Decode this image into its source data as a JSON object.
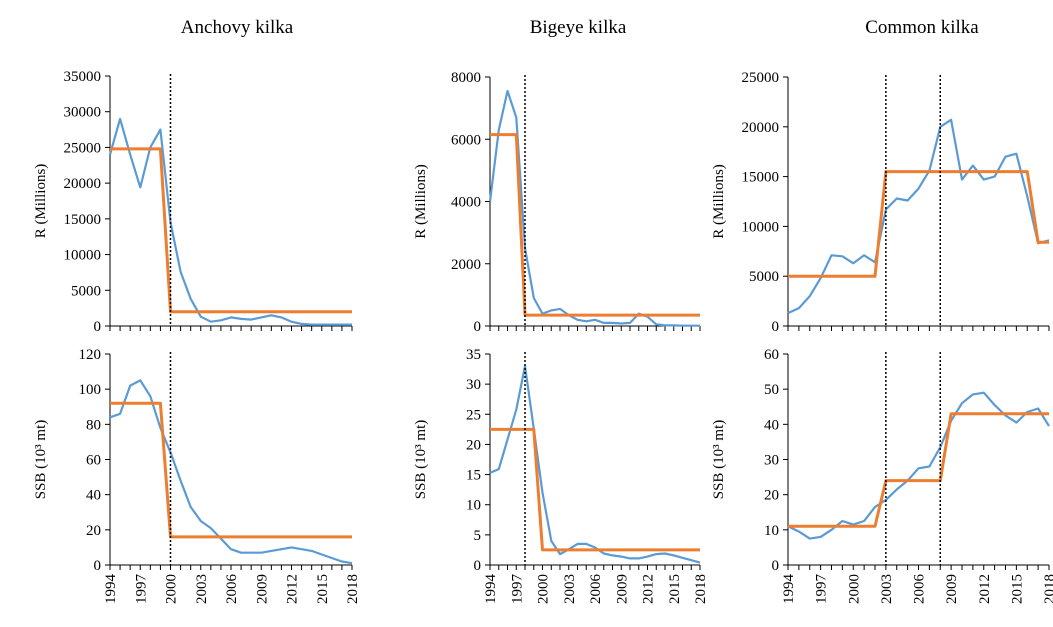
{
  "colors": {
    "observed": "#5b9bd5",
    "regime": "#ed7d31",
    "axis": "#000000",
    "breakpoint": "#000000"
  },
  "chart_data": [
    {
      "type": "line",
      "title": "Anchovy kilka",
      "ylabel": "R (Millions)",
      "ylim": [
        0,
        35000
      ],
      "yticks": [
        "35000",
        "30000",
        "25000",
        "20000",
        "15000",
        "10000",
        "5000",
        "0"
      ],
      "xticks": [
        "1994",
        "1997",
        "2000",
        "2003",
        "2006",
        "2009",
        "2012",
        "2015",
        "2018"
      ],
      "x": [
        1994,
        1995,
        1996,
        1997,
        1998,
        1999,
        2000,
        2001,
        2002,
        2003,
        2004,
        2005,
        2006,
        2007,
        2008,
        2009,
        2010,
        2011,
        2012,
        2013,
        2014,
        2015,
        2016,
        2017,
        2018
      ],
      "breakpoints": [
        2000
      ],
      "series": [
        {
          "values": [
            24000,
            29000,
            24000,
            19400,
            25000,
            27500,
            14500,
            7600,
            3800,
            1300,
            600,
            800,
            1200,
            1000,
            900,
            1200,
            1500,
            1200,
            600,
            300,
            200,
            200,
            200,
            200,
            200
          ]
        },
        {
          "regime": true,
          "values": [
            24800,
            24800,
            24800,
            24800,
            24800,
            24800,
            2000,
            2000,
            2000,
            2000,
            2000,
            2000,
            2000,
            2000,
            2000,
            2000,
            2000,
            2000,
            2000,
            2000,
            2000,
            2000,
            2000,
            2000,
            2000
          ]
        }
      ]
    },
    {
      "type": "line",
      "title": "Bigeye kilka",
      "ylabel": "R (Millions)",
      "ylim": [
        0,
        8000
      ],
      "yticks": [
        "8000",
        "6000",
        "4000",
        "2000",
        "0"
      ],
      "xticks": [
        "1994",
        "1997",
        "2000",
        "2003",
        "2006",
        "2009",
        "2012",
        "2015",
        "2018"
      ],
      "x": [
        1994,
        1995,
        1996,
        1997,
        1998,
        1999,
        2000,
        2001,
        2002,
        2003,
        2004,
        2005,
        2006,
        2007,
        2008,
        2009,
        2010,
        2011,
        2012,
        2013,
        2014,
        2015,
        2016,
        2017,
        2018
      ],
      "breakpoints": [
        1998
      ],
      "series": [
        {
          "values": [
            4000,
            6300,
            7550,
            6700,
            2500,
            900,
            400,
            500,
            550,
            350,
            200,
            150,
            200,
            100,
            100,
            80,
            100,
            400,
            300,
            50,
            20,
            20,
            10,
            10,
            10
          ]
        },
        {
          "regime": true,
          "values": [
            6150,
            6150,
            6150,
            6150,
            350,
            350,
            350,
            350,
            350,
            350,
            350,
            350,
            350,
            350,
            350,
            350,
            350,
            350,
            350,
            350,
            350,
            350,
            350,
            350,
            350
          ]
        }
      ]
    },
    {
      "type": "line",
      "title": "Common kilka",
      "ylabel": "R (Millions)",
      "ylim": [
        0,
        25000
      ],
      "yticks": [
        "25000",
        "20000",
        "15000",
        "10000",
        "5000",
        "0"
      ],
      "xticks": [
        "1994",
        "1997",
        "2000",
        "2003",
        "2006",
        "2009",
        "2012",
        "2015",
        "2018"
      ],
      "x": [
        1994,
        1995,
        1996,
        1997,
        1998,
        1999,
        2000,
        2001,
        2002,
        2003,
        2004,
        2005,
        2006,
        2007,
        2008,
        2009,
        2010,
        2011,
        2012,
        2013,
        2014,
        2015,
        2016,
        2017,
        2018
      ],
      "breakpoints": [
        2003,
        2008
      ],
      "series": [
        {
          "values": [
            1300,
            1800,
            3000,
            4800,
            7100,
            7000,
            6300,
            7100,
            6400,
            11700,
            12800,
            12600,
            13800,
            15600,
            20000,
            20700,
            14700,
            16100,
            14700,
            15000,
            17000,
            17300,
            13000,
            8300,
            8600
          ]
        },
        {
          "regime": true,
          "values": [
            5000,
            5000,
            5000,
            5000,
            5000,
            5000,
            5000,
            5000,
            5000,
            15500,
            15500,
            15500,
            15500,
            15500,
            15500,
            15500,
            15500,
            15500,
            15500,
            15500,
            15500,
            15500,
            15500,
            8400,
            8400
          ]
        }
      ]
    },
    {
      "type": "line",
      "title": "",
      "ylabel": "SSB (10³ mt)",
      "ylim": [
        0,
        120
      ],
      "yticks": [
        "120",
        "100",
        "80",
        "60",
        "40",
        "20",
        "0"
      ],
      "xticks": [
        "1994",
        "1997",
        "2000",
        "2003",
        "2006",
        "2009",
        "2012",
        "2015",
        "2018"
      ],
      "x": [
        1994,
        1995,
        1996,
        1997,
        1998,
        1999,
        2000,
        2001,
        2002,
        2003,
        2004,
        2005,
        2006,
        2007,
        2008,
        2009,
        2010,
        2011,
        2012,
        2013,
        2014,
        2015,
        2016,
        2017,
        2018
      ],
      "breakpoints": [
        2000
      ],
      "series": [
        {
          "values": [
            84,
            86,
            102,
            105,
            96,
            78,
            64,
            48,
            33,
            25,
            21,
            15,
            9,
            7,
            7,
            7,
            8,
            9,
            10,
            9,
            8,
            6,
            4,
            2,
            1
          ]
        },
        {
          "regime": true,
          "values": [
            92,
            92,
            92,
            92,
            92,
            92,
            16,
            16,
            16,
            16,
            16,
            16,
            16,
            16,
            16,
            16,
            16,
            16,
            16,
            16,
            16,
            16,
            16,
            16,
            16
          ]
        }
      ]
    },
    {
      "type": "line",
      "title": "",
      "ylabel": "SSB (10³ mt)",
      "ylim": [
        0,
        35
      ],
      "yticks": [
        "35",
        "30",
        "25",
        "20",
        "15",
        "10",
        "5",
        "0"
      ],
      "xticks": [
        "1994",
        "1997",
        "2000",
        "2003",
        "2006",
        "2009",
        "2012",
        "2015",
        "2018"
      ],
      "x": [
        1994,
        1995,
        1996,
        1997,
        1998,
        1999,
        2000,
        2001,
        2002,
        2003,
        2004,
        2005,
        2006,
        2007,
        2008,
        2009,
        2010,
        2011,
        2012,
        2013,
        2014,
        2015,
        2016,
        2017,
        2018
      ],
      "breakpoints": [
        1998
      ],
      "series": [
        {
          "values": [
            15.3,
            15.9,
            20.8,
            25.8,
            33,
            22.6,
            12,
            4,
            1.8,
            2.6,
            3.5,
            3.5,
            2.9,
            1.9,
            1.6,
            1.4,
            1.1,
            1.1,
            1.4,
            1.8,
            1.9,
            1.6,
            1.2,
            0.8,
            0.4
          ]
        },
        {
          "regime": true,
          "values": [
            22.5,
            22.5,
            22.5,
            22.5,
            22.5,
            22.5,
            2.5,
            2.5,
            2.5,
            2.5,
            2.5,
            2.5,
            2.5,
            2.5,
            2.5,
            2.5,
            2.5,
            2.5,
            2.5,
            2.5,
            2.5,
            2.5,
            2.5,
            2.5,
            2.5
          ]
        }
      ]
    },
    {
      "type": "line",
      "title": "",
      "ylabel": "SSB (10³ mt)",
      "ylim": [
        0,
        60
      ],
      "yticks": [
        "60",
        "50",
        "40",
        "30",
        "20",
        "10",
        "0"
      ],
      "xticks": [
        "1994",
        "1997",
        "2000",
        "2003",
        "2006",
        "2009",
        "2012",
        "2015",
        "2018"
      ],
      "x": [
        1994,
        1995,
        1996,
        1997,
        1998,
        1999,
        2000,
        2001,
        2002,
        2003,
        2004,
        2005,
        2006,
        2007,
        2008,
        2009,
        2010,
        2011,
        2012,
        2013,
        2014,
        2015,
        2016,
        2017,
        2018
      ],
      "breakpoints": [
        2003,
        2008
      ],
      "series": [
        {
          "values": [
            11,
            9.5,
            7.5,
            8,
            10,
            12.5,
            11.5,
            12.5,
            16.5,
            18.5,
            21.5,
            24,
            27.5,
            28,
            33.5,
            41,
            46,
            48.5,
            49,
            45.5,
            42.5,
            40.5,
            43.5,
            44.5,
            39.5
          ]
        },
        {
          "regime": true,
          "values": [
            11,
            11,
            11,
            11,
            11,
            11,
            11,
            11,
            11,
            24,
            24,
            24,
            24,
            24,
            24,
            43,
            43,
            43,
            43,
            43,
            43,
            43,
            43,
            43,
            43
          ]
        }
      ]
    }
  ]
}
